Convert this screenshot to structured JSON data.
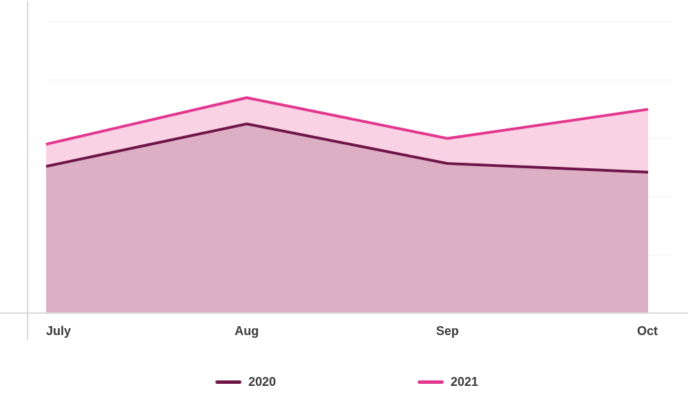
{
  "chart_data": {
    "type": "area",
    "categories": [
      "July",
      "Aug",
      "Sep",
      "Oct"
    ],
    "series": [
      {
        "name": "2021",
        "values": [
          290,
          370,
          300,
          350
        ],
        "color": "#e3378f",
        "fill": "#f9d2e3"
      },
      {
        "name": "2020",
        "values": [
          252,
          325,
          257,
          242
        ],
        "color": "#6e1649",
        "fill": "#dcafc4"
      }
    ],
    "ylim": [
      0,
      500
    ],
    "grid": true,
    "legend_position": "bottom"
  }
}
